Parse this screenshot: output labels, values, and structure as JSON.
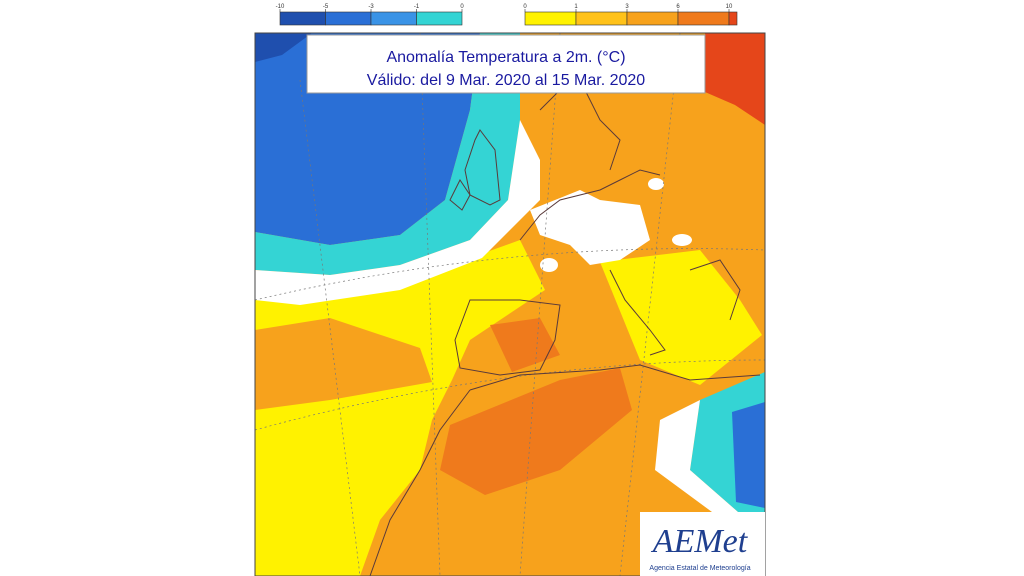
{
  "title": {
    "line1": "Anomalía Temperatura a 2m. (°C)",
    "line2": "Válido: del 9 Mar. 2020 al 15 Mar. 2020"
  },
  "colorbar": {
    "cold": {
      "ticks": [
        -10,
        -5,
        -3,
        -1,
        0
      ],
      "colors": [
        "#1f4fae",
        "#2a6fd6",
        "#3a93e6",
        "#34d4d4"
      ]
    },
    "warm": {
      "ticks": [
        0,
        1,
        3,
        6,
        10
      ],
      "colors": [
        "#fff200",
        "#ffc21a",
        "#f7a21c",
        "#ef7a1c",
        "#e5461a"
      ]
    }
  },
  "logo": {
    "name": "AEMet",
    "subtitle": "Agencia Estatal de Meteorología"
  }
}
